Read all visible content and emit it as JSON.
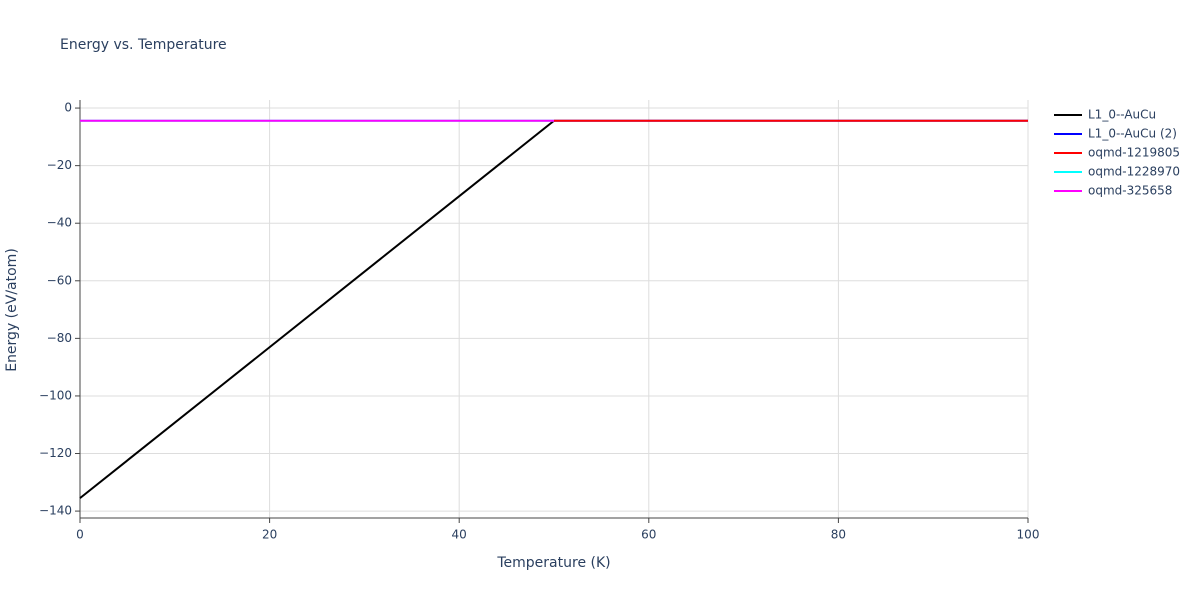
{
  "chart_data": {
    "type": "line",
    "title": "Energy vs. Temperature",
    "x_label": "Temperature (K)",
    "y_label": "Energy (eV/atom)",
    "series": [
      {
        "name": "L1_0--AuCu",
        "color": "#000000",
        "x": [
          0,
          50
        ],
        "values": [
          -135.5,
          -4.4
        ]
      },
      {
        "name": "L1_0--AuCu (2)",
        "color": "#0000ff",
        "x": [
          50,
          100
        ],
        "values": [
          -4.4,
          -4.4
        ]
      },
      {
        "name": "oqmd-1219805",
        "color": "#ff0000",
        "x": [
          50,
          100
        ],
        "values": [
          -4.4,
          -4.4
        ]
      },
      {
        "name": "oqmd-1228970",
        "color": "#00ffff",
        "x": [
          0,
          50
        ],
        "values": [
          -4.4,
          -4.4
        ]
      },
      {
        "name": "oqmd-325658",
        "color": "#ff00ff",
        "x": [
          0,
          50
        ],
        "values": [
          -4.4,
          -4.4
        ]
      }
    ],
    "xlim": [
      0,
      100
    ],
    "xticks": [
      0,
      20,
      40,
      60,
      80,
      100
    ],
    "ylim": [
      -142.4,
      2.8
    ],
    "yticks": [
      0,
      {
        "value": -20,
        "label": "−20"
      },
      {
        "value": -40,
        "label": "−40"
      },
      {
        "value": -60,
        "label": "−60"
      },
      {
        "value": -80,
        "label": "−80"
      },
      {
        "value": -100,
        "label": "−100"
      },
      {
        "value": -120,
        "label": "−120"
      },
      {
        "value": -140,
        "label": "−140"
      }
    ],
    "grid": true,
    "legend": "right"
  }
}
